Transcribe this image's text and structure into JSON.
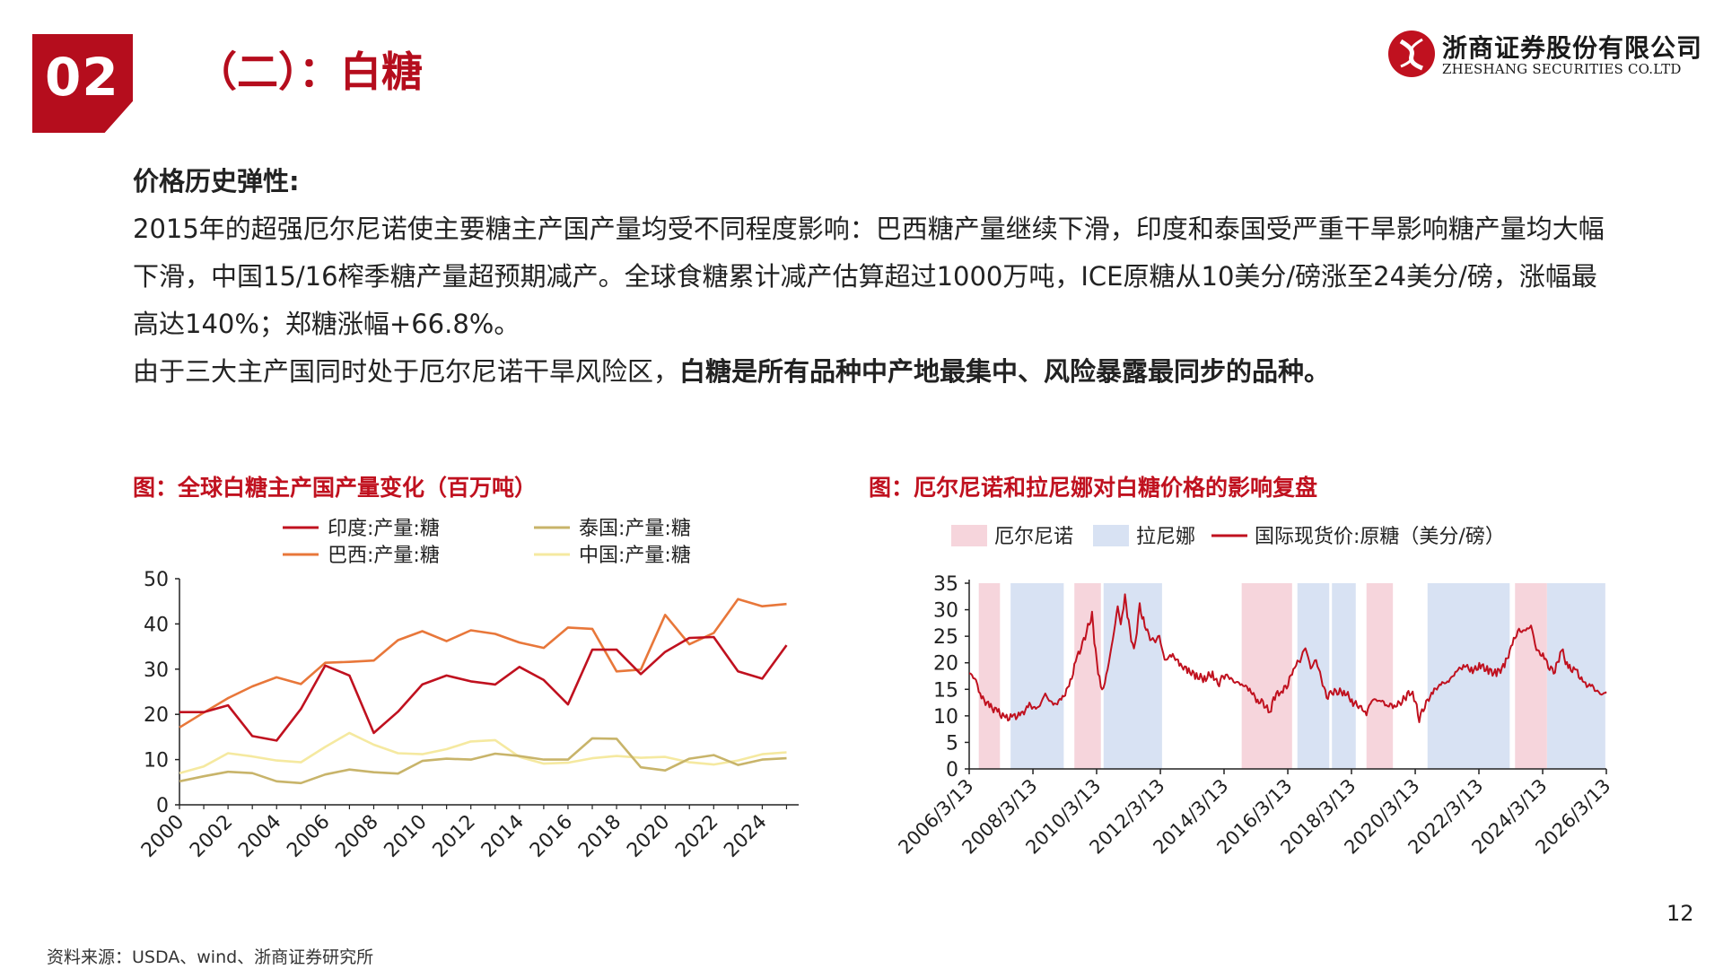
{
  "section": {
    "number": "02",
    "title": "（二）：白糖"
  },
  "logo": {
    "cn": "浙商证券股份有限公司",
    "en": "ZHESHANG SECURITIES CO.LTD"
  },
  "body": {
    "heading": "价格历史弹性:",
    "paragraph1": "2015年的超强厄尔尼诺使主要糖主产国产量均受不同程度影响：巴西糖产量继续下滑，印度和泰国受严重干旱影响糖产量均大幅下滑，中国15/16榨季糖产量超预期减产。全球食糖累计减产估算超过1000万吨，ICE原糖从10美分/磅涨至24美分/磅，涨幅最高达140%；郑糖涨幅+66.8%。",
    "paragraph2_normal": "由于三大主产国同时处于厄尔尼诺干旱风险区，",
    "paragraph2_bold": "白糖是所有品种中产地最集中、风险暴露最同步的品种。"
  },
  "chart1_title": "图：全球白糖主产国产量变化（百万吨）",
  "chart2_title": "图：厄尔尼诺和拉尼娜对白糖价格的影响复盘",
  "footnote": "资料来源：USDA、wind、浙商证券研究所",
  "page_number": "12",
  "chart_data": [
    {
      "type": "line",
      "title": "图：全球白糖主产国产量变化（百万吨）",
      "ylim": [
        0,
        50
      ],
      "yticks": [
        "0",
        "10",
        "20",
        "30",
        "40",
        "50"
      ],
      "xticks": [
        "2000",
        "2002",
        "2004",
        "2006",
        "2008",
        "2010",
        "2012",
        "2014",
        "2016",
        "2018",
        "2020",
        "2022",
        "2024"
      ],
      "x": [
        2000,
        2001,
        2002,
        2003,
        2004,
        2005,
        2006,
        2007,
        2008,
        2009,
        2010,
        2011,
        2012,
        2013,
        2014,
        2015,
        2016,
        2017,
        2018,
        2019,
        2020,
        2021,
        2022,
        2023,
        2024,
        2025
      ],
      "legend_position": "top",
      "series": [
        {
          "name": "印度:产量:糖",
          "color": "#c0111f",
          "values": [
            20.5,
            20.5,
            22.0,
            15.2,
            14.2,
            21.2,
            30.8,
            28.6,
            15.9,
            20.6,
            26.6,
            28.6,
            27.3,
            26.6,
            30.5,
            27.6,
            22.2,
            34.3,
            34.3,
            28.9,
            33.8,
            36.9,
            37.1,
            29.5,
            27.9,
            35.3
          ]
        },
        {
          "name": "巴西:产量:糖",
          "color": "#e8773a",
          "values": [
            17.1,
            20.4,
            23.6,
            26.2,
            28.2,
            26.7,
            31.4,
            31.6,
            31.9,
            36.4,
            38.4,
            36.2,
            38.6,
            37.8,
            35.9,
            34.7,
            39.2,
            38.9,
            29.5,
            29.9,
            42.0,
            35.5,
            38.0,
            45.5,
            43.9,
            44.4
          ]
        },
        {
          "name": "泰国:产量:糖",
          "color": "#c8b46a",
          "values": [
            5.2,
            6.3,
            7.3,
            7.0,
            5.2,
            4.8,
            6.7,
            7.8,
            7.2,
            6.9,
            9.7,
            10.2,
            10.0,
            11.3,
            10.8,
            10.0,
            10.0,
            14.7,
            14.6,
            8.3,
            7.6,
            10.2,
            11.0,
            8.8,
            10.0,
            10.3
          ]
        },
        {
          "name": "中国:产量:糖",
          "color": "#f5e9a0",
          "values": [
            7.0,
            8.5,
            11.4,
            10.7,
            9.8,
            9.4,
            12.8,
            15.9,
            13.3,
            11.4,
            11.2,
            12.3,
            14.0,
            14.3,
            10.6,
            9.1,
            9.3,
            10.3,
            10.8,
            10.4,
            10.6,
            9.4,
            8.9,
            9.8,
            11.2,
            11.6
          ]
        }
      ]
    },
    {
      "type": "line",
      "title": "图：厄尔尼诺和拉尼娜对白糖价格的影响复盘",
      "ylim": [
        0,
        35
      ],
      "yticks": [
        "0",
        "5",
        "10",
        "15",
        "20",
        "25",
        "30",
        "35"
      ],
      "xticks": [
        "2006/3/13",
        "2008/3/13",
        "2010/3/13",
        "2012/3/13",
        "2014/3/13",
        "2016/3/13",
        "2018/3/13",
        "2020/3/13",
        "2022/3/13",
        "2024/3/13",
        "2026/3/13"
      ],
      "legend_position": "top",
      "legend": [
        {
          "name": "厄尔尼诺",
          "color": "#f6d5dc",
          "kind": "band"
        },
        {
          "name": "拉尼娜",
          "color": "#d8e2f3",
          "kind": "band"
        },
        {
          "name": "国际现货价:原糖（美分/磅）",
          "color": "#c0111f",
          "kind": "line"
        }
      ],
      "el_nino_periods": [
        [
          "2006-07-01",
          "2007-03-01"
        ],
        [
          "2009-07-01",
          "2010-05-01"
        ],
        [
          "2014-10-01",
          "2016-05-01"
        ],
        [
          "2018-09-01",
          "2019-07-01"
        ],
        [
          "2023-05-01",
          "2024-05-01"
        ]
      ],
      "la_nina_periods": [
        [
          "2007-07-01",
          "2009-03-01"
        ],
        [
          "2009-08-01",
          "2010-01-01"
        ],
        [
          "2010-06-01",
          "2012-04-01"
        ],
        [
          "2016-07-01",
          "2017-07-01"
        ],
        [
          "2017-08-01",
          "2018-05-01"
        ],
        [
          "2020-08-01",
          "2023-03-01"
        ],
        [
          "2024-05-01",
          "2026-03-01"
        ]
      ],
      "series": [
        {
          "name": "国际现货价:原糖（美分/磅）",
          "color": "#c0111f",
          "points": [
            [
              "2006-03-13",
              18.0
            ],
            [
              "2006-05-15",
              17.2
            ],
            [
              "2006-08-01",
              13.5
            ],
            [
              "2006-11-01",
              11.8
            ],
            [
              "2007-02-01",
              10.8
            ],
            [
              "2007-05-01",
              9.5
            ],
            [
              "2007-08-01",
              9.8
            ],
            [
              "2007-11-01",
              10.2
            ],
            [
              "2008-02-01",
              12.0
            ],
            [
              "2008-05-01",
              11.2
            ],
            [
              "2008-08-01",
              14.0
            ],
            [
              "2008-11-01",
              12.0
            ],
            [
              "2009-02-01",
              13.0
            ],
            [
              "2009-05-01",
              15.5
            ],
            [
              "2009-08-01",
              21.0
            ],
            [
              "2009-10-01",
              23.5
            ],
            [
              "2010-01-20",
              29.0
            ],
            [
              "2010-03-01",
              22.0
            ],
            [
              "2010-04-15",
              16.8
            ],
            [
              "2010-05-15",
              14.5
            ],
            [
              "2010-07-01",
              17.5
            ],
            [
              "2010-09-01",
              23.0
            ],
            [
              "2010-11-10",
              30.5
            ],
            [
              "2010-12-15",
              27.0
            ],
            [
              "2011-02-01",
              32.5
            ],
            [
              "2011-03-15",
              27.5
            ],
            [
              "2011-05-15",
              22.0
            ],
            [
              "2011-07-20",
              30.5
            ],
            [
              "2011-09-01",
              28.0
            ],
            [
              "2011-11-01",
              25.0
            ],
            [
              "2012-01-01",
              24.0
            ],
            [
              "2012-03-01",
              25.0
            ],
            [
              "2012-05-01",
              20.5
            ],
            [
              "2012-08-01",
              21.5
            ],
            [
              "2012-11-01",
              19.5
            ],
            [
              "2013-02-01",
              18.5
            ],
            [
              "2013-05-01",
              17.5
            ],
            [
              "2013-08-01",
              17.0
            ],
            [
              "2013-11-01",
              18.0
            ],
            [
              "2014-01-01",
              15.8
            ],
            [
              "2014-03-01",
              17.5
            ],
            [
              "2014-05-01",
              17.5
            ],
            [
              "2014-07-01",
              16.5
            ],
            [
              "2014-10-01",
              16.0
            ],
            [
              "2015-01-01",
              15.0
            ],
            [
              "2015-04-01",
              12.8
            ],
            [
              "2015-06-01",
              12.5
            ],
            [
              "2015-08-20",
              10.5
            ],
            [
              "2015-10-01",
              13.5
            ],
            [
              "2016-01-01",
              14.8
            ],
            [
              "2016-03-01",
              15.5
            ],
            [
              "2016-06-01",
              19.5
            ],
            [
              "2016-08-01",
              20.5
            ],
            [
              "2016-10-01",
              23.0
            ],
            [
              "2016-12-01",
              19.0
            ],
            [
              "2017-02-01",
              20.5
            ],
            [
              "2017-04-01",
              17.0
            ],
            [
              "2017-06-01",
              13.5
            ],
            [
              "2017-08-01",
              14.5
            ],
            [
              "2017-10-01",
              14.5
            ],
            [
              "2018-01-01",
              14.5
            ],
            [
              "2018-04-01",
              12.5
            ],
            [
              "2018-06-01",
              12.0
            ],
            [
              "2018-09-01",
              10.5
            ],
            [
              "2018-11-01",
              13.0
            ],
            [
              "2019-02-01",
              13.0
            ],
            [
              "2019-05-01",
              12.0
            ],
            [
              "2019-08-01",
              12.0
            ],
            [
              "2019-10-01",
              12.5
            ],
            [
              "2020-01-10",
              14.5
            ],
            [
              "2020-03-01",
              13.5
            ],
            [
              "2020-04-28",
              9.5
            ],
            [
              "2020-07-01",
              12.0
            ],
            [
              "2020-10-01",
              14.5
            ],
            [
              "2021-01-01",
              16.0
            ],
            [
              "2021-04-01",
              16.5
            ],
            [
              "2021-07-01",
              18.5
            ],
            [
              "2021-10-01",
              19.5
            ],
            [
              "2022-01-01",
              18.5
            ],
            [
              "2022-04-01",
              19.5
            ],
            [
              "2022-07-01",
              18.5
            ],
            [
              "2022-10-01",
              18.0
            ],
            [
              "2023-01-01",
              19.5
            ],
            [
              "2023-04-01",
              23.5
            ],
            [
              "2023-06-01",
              26.0
            ],
            [
              "2023-09-01",
              26.0
            ],
            [
              "2023-11-01",
              27.0
            ],
            [
              "2024-01-01",
              22.5
            ],
            [
              "2024-04-01",
              21.0
            ],
            [
              "2024-06-01",
              19.0
            ],
            [
              "2024-08-01",
              18.5
            ],
            [
              "2024-10-15",
              22.5
            ],
            [
              "2025-01-01",
              19.0
            ],
            [
              "2025-04-01",
              18.5
            ],
            [
              "2025-07-01",
              16.0
            ],
            [
              "2025-10-01",
              15.5
            ],
            [
              "2025-12-01",
              14.5
            ],
            [
              "2026-02-01",
              14.0
            ],
            [
              "2026-03-13",
              14.5
            ]
          ]
        }
      ]
    }
  ]
}
